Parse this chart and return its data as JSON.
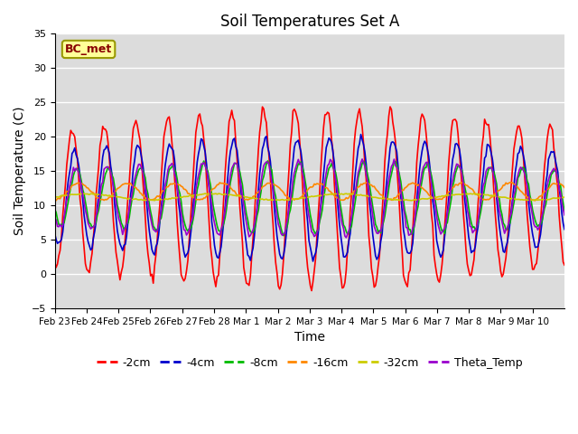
{
  "title": "Soil Temperatures Set A",
  "xlabel": "Time",
  "ylabel": "Soil Temperature (C)",
  "ylim": [
    -5,
    35
  ],
  "annotation": "BC_met",
  "bg_color": "#dcdcdc",
  "series": {
    "-2cm": {
      "color": "#ff0000",
      "lw": 1.2
    },
    "-4cm": {
      "color": "#0000cc",
      "lw": 1.2
    },
    "-8cm": {
      "color": "#00bb00",
      "lw": 1.2
    },
    "-16cm": {
      "color": "#ff8800",
      "lw": 1.2
    },
    "-32cm": {
      "color": "#cccc00",
      "lw": 1.2
    },
    "Theta_Temp": {
      "color": "#9900cc",
      "lw": 1.2
    }
  },
  "xtick_labels": [
    "Feb 23",
    "Feb 24",
    "Feb 25",
    "Feb 26",
    "Feb 27",
    "Feb 28",
    "Mar 1",
    "Mar 2",
    "Mar 3",
    "Mar 4",
    "Mar 5",
    "Mar 6",
    "Mar 7",
    "Mar 8",
    "Mar 9",
    "Mar 10"
  ],
  "legend_order": [
    "-2cm",
    "-4cm",
    "-8cm",
    "-16cm",
    "-32cm",
    "Theta_Temp"
  ],
  "legend_colors": [
    "#ff0000",
    "#0000cc",
    "#00bb00",
    "#ff8800",
    "#cccc00",
    "#9900cc"
  ],
  "yticks": [
    -5,
    0,
    5,
    10,
    15,
    20,
    25,
    30,
    35
  ]
}
